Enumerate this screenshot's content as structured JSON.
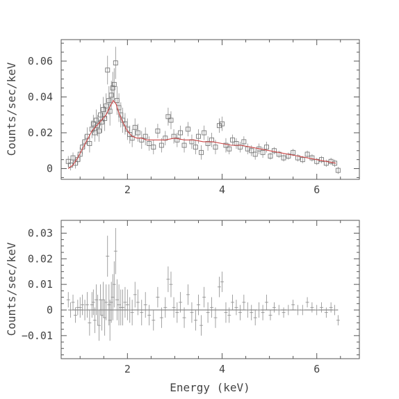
{
  "chart_data": [
    {
      "type": "scatter",
      "panel": "top",
      "title": "",
      "xlabel": "",
      "ylabel": "Counts/sec/keV",
      "xlim": [
        0.6,
        6.9
      ],
      "ylim": [
        -0.006,
        0.072
      ],
      "xticks": [
        2,
        4,
        6
      ],
      "xtick_labels": [
        "2",
        "4",
        "6"
      ],
      "yticks": [
        0,
        0.02,
        0.04,
        0.06
      ],
      "ytick_labels": [
        "0",
        "0.02",
        "0.04",
        "0.06"
      ],
      "series": [
        {
          "type": "scatter",
          "x": [
            0.75,
            0.8,
            0.85,
            0.9,
            0.95,
            1.0,
            1.05,
            1.1,
            1.15,
            1.2,
            1.25,
            1.28,
            1.31,
            1.34,
            1.37,
            1.4,
            1.43,
            1.46,
            1.49,
            1.52,
            1.55,
            1.58,
            1.61,
            1.63,
            1.66,
            1.69,
            1.72,
            1.75,
            1.78,
            1.82,
            1.86,
            1.9,
            1.95,
            2.0,
            2.05,
            2.1,
            2.16,
            2.22,
            2.3,
            2.38,
            2.46,
            2.55,
            2.64,
            2.72,
            2.8,
            2.86,
            2.92,
            2.98,
            3.05,
            3.12,
            3.2,
            3.28,
            3.36,
            3.44,
            3.5,
            3.56,
            3.62,
            3.7,
            3.78,
            3.86,
            3.94,
            4.0,
            4.08,
            4.15,
            4.22,
            4.3,
            4.38,
            4.46,
            4.54,
            4.62,
            4.7,
            4.78,
            4.86,
            4.94,
            5.02,
            5.1,
            5.2,
            5.3,
            5.4,
            5.5,
            5.6,
            5.7,
            5.8,
            5.9,
            6.0,
            6.1,
            6.2,
            6.3,
            6.38,
            6.45
          ],
          "y": [
            0.004,
            0.002,
            0.006,
            0.003,
            0.005,
            0.008,
            0.012,
            0.015,
            0.018,
            0.014,
            0.022,
            0.025,
            0.02,
            0.027,
            0.024,
            0.021,
            0.03,
            0.026,
            0.033,
            0.028,
            0.035,
            0.055,
            0.038,
            0.032,
            0.041,
            0.045,
            0.047,
            0.059,
            0.038,
            0.034,
            0.03,
            0.027,
            0.025,
            0.022,
            0.019,
            0.017,
            0.023,
            0.02,
            0.016,
            0.018,
            0.014,
            0.012,
            0.021,
            0.013,
            0.017,
            0.029,
            0.027,
            0.018,
            0.016,
            0.02,
            0.013,
            0.022,
            0.015,
            0.012,
            0.018,
            0.009,
            0.02,
            0.014,
            0.016,
            0.012,
            0.024,
            0.025,
            0.013,
            0.011,
            0.016,
            0.014,
            0.012,
            0.015,
            0.011,
            0.01,
            0.008,
            0.011,
            0.009,
            0.012,
            0.007,
            0.01,
            0.008,
            0.006,
            0.007,
            0.009,
            0.006,
            0.005,
            0.008,
            0.006,
            0.004,
            0.005,
            0.003,
            0.004,
            0.003,
            -0.001
          ],
          "yerr": [
            0.003,
            0.003,
            0.003,
            0.003,
            0.003,
            0.004,
            0.004,
            0.004,
            0.005,
            0.005,
            0.005,
            0.005,
            0.005,
            0.006,
            0.006,
            0.006,
            0.006,
            0.006,
            0.007,
            0.007,
            0.007,
            0.008,
            0.008,
            0.008,
            0.008,
            0.009,
            0.009,
            0.009,
            0.008,
            0.008,
            0.007,
            0.007,
            0.006,
            0.006,
            0.005,
            0.005,
            0.005,
            0.005,
            0.005,
            0.005,
            0.004,
            0.004,
            0.004,
            0.004,
            0.004,
            0.005,
            0.005,
            0.004,
            0.004,
            0.004,
            0.004,
            0.004,
            0.004,
            0.004,
            0.004,
            0.004,
            0.004,
            0.004,
            0.004,
            0.004,
            0.004,
            0.004,
            0.004,
            0.003,
            0.003,
            0.003,
            0.003,
            0.003,
            0.003,
            0.003,
            0.003,
            0.003,
            0.003,
            0.003,
            0.002,
            0.002,
            0.002,
            0.002,
            0.002,
            0.002,
            0.002,
            0.002,
            0.002,
            0.002,
            0.002,
            0.002,
            0.002,
            0.002,
            0.002,
            0.002
          ]
        },
        {
          "type": "line",
          "x": [
            0.75,
            0.85,
            0.95,
            1.05,
            1.15,
            1.25,
            1.35,
            1.45,
            1.55,
            1.62,
            1.7,
            1.76,
            1.82,
            1.9,
            2.0,
            2.1,
            2.2,
            2.3,
            2.4,
            2.6,
            2.8,
            3.0,
            3.2,
            3.4,
            3.6,
            3.8,
            4.0,
            4.2,
            4.4,
            4.6,
            4.8,
            5.0,
            5.2,
            5.4,
            5.6,
            5.8,
            6.0,
            6.2,
            6.4
          ],
          "y": [
            0.0,
            0.002,
            0.006,
            0.011,
            0.016,
            0.021,
            0.024,
            0.027,
            0.03,
            0.034,
            0.038,
            0.036,
            0.031,
            0.026,
            0.021,
            0.018,
            0.017,
            0.017,
            0.016,
            0.016,
            0.016,
            0.017,
            0.016,
            0.016,
            0.015,
            0.015,
            0.014,
            0.013,
            0.013,
            0.012,
            0.011,
            0.01,
            0.009,
            0.008,
            0.007,
            0.006,
            0.005,
            0.004,
            0.003
          ]
        }
      ]
    },
    {
      "type": "scatter",
      "panel": "bottom",
      "title": "",
      "xlabel": "Energy (keV)",
      "ylabel": "Counts/sec/keV",
      "xlim": [
        0.6,
        6.9
      ],
      "ylim": [
        -0.019,
        0.035
      ],
      "xticks": [
        2,
        4,
        6
      ],
      "xtick_labels": [
        "2",
        "4",
        "6"
      ],
      "yticks": [
        -0.01,
        0,
        0.01,
        0.02,
        0.03
      ],
      "ytick_labels": [
        "−0.01",
        "0",
        "0.01",
        "0.02",
        "0.03"
      ],
      "series": [
        {
          "type": "residuals",
          "x": [
            0.75,
            0.8,
            0.85,
            0.9,
            0.95,
            1.0,
            1.05,
            1.1,
            1.15,
            1.2,
            1.25,
            1.28,
            1.31,
            1.34,
            1.37,
            1.4,
            1.43,
            1.46,
            1.49,
            1.52,
            1.55,
            1.58,
            1.61,
            1.63,
            1.66,
            1.69,
            1.72,
            1.75,
            1.78,
            1.82,
            1.86,
            1.9,
            1.95,
            2.0,
            2.05,
            2.1,
            2.16,
            2.22,
            2.3,
            2.38,
            2.46,
            2.55,
            2.64,
            2.72,
            2.8,
            2.86,
            2.92,
            2.98,
            3.05,
            3.12,
            3.2,
            3.28,
            3.36,
            3.44,
            3.5,
            3.56,
            3.62,
            3.7,
            3.78,
            3.86,
            3.94,
            4.0,
            4.08,
            4.15,
            4.22,
            4.3,
            4.38,
            4.46,
            4.54,
            4.62,
            4.7,
            4.78,
            4.86,
            4.94,
            5.02,
            5.1,
            5.2,
            5.3,
            5.4,
            5.5,
            5.6,
            5.7,
            5.8,
            5.9,
            6.0,
            6.1,
            6.2,
            6.3,
            6.38,
            6.45
          ],
          "y": [
            0.004,
            0.0,
            0.003,
            -0.002,
            0.001,
            0.001,
            0.002,
            0.0,
            0.002,
            -0.005,
            0.002,
            0.003,
            -0.004,
            0.004,
            0.0,
            -0.006,
            0.004,
            -0.002,
            0.004,
            -0.003,
            0.003,
            0.021,
            0.002,
            -0.004,
            0.003,
            0.005,
            0.01,
            0.023,
            0.004,
            0.002,
            0.001,
            0.001,
            0.003,
            0.002,
            0.0,
            -0.001,
            0.006,
            0.003,
            -0.001,
            0.002,
            -0.002,
            -0.004,
            0.005,
            -0.003,
            0.001,
            0.012,
            0.01,
            0.001,
            -0.001,
            0.003,
            -0.003,
            0.006,
            -0.001,
            -0.004,
            0.002,
            -0.006,
            0.005,
            -0.001,
            0.001,
            -0.003,
            0.009,
            0.011,
            -0.001,
            -0.002,
            0.003,
            0.001,
            -0.001,
            0.003,
            0.0,
            -0.001,
            -0.003,
            0.0,
            -0.001,
            0.003,
            -0.002,
            0.001,
            0.0,
            -0.001,
            0.0,
            0.002,
            0.0,
            0.0,
            0.003,
            0.001,
            0.0,
            0.001,
            -0.001,
            0.001,
            0.0,
            -0.004
          ],
          "yerr": [
            0.003,
            0.003,
            0.003,
            0.003,
            0.003,
            0.004,
            0.004,
            0.004,
            0.005,
            0.005,
            0.005,
            0.005,
            0.005,
            0.006,
            0.006,
            0.006,
            0.006,
            0.006,
            0.007,
            0.007,
            0.007,
            0.008,
            0.008,
            0.008,
            0.008,
            0.009,
            0.009,
            0.009,
            0.008,
            0.008,
            0.007,
            0.007,
            0.006,
            0.006,
            0.005,
            0.005,
            0.005,
            0.005,
            0.005,
            0.005,
            0.004,
            0.004,
            0.004,
            0.004,
            0.004,
            0.005,
            0.005,
            0.004,
            0.004,
            0.004,
            0.004,
            0.004,
            0.004,
            0.004,
            0.004,
            0.004,
            0.004,
            0.004,
            0.004,
            0.004,
            0.004,
            0.004,
            0.004,
            0.003,
            0.003,
            0.003,
            0.003,
            0.003,
            0.003,
            0.003,
            0.003,
            0.003,
            0.003,
            0.003,
            0.002,
            0.002,
            0.002,
            0.002,
            0.002,
            0.002,
            0.002,
            0.002,
            0.002,
            0.002,
            0.002,
            0.002,
            0.002,
            0.002,
            0.002,
            0.002
          ]
        }
      ]
    }
  ]
}
